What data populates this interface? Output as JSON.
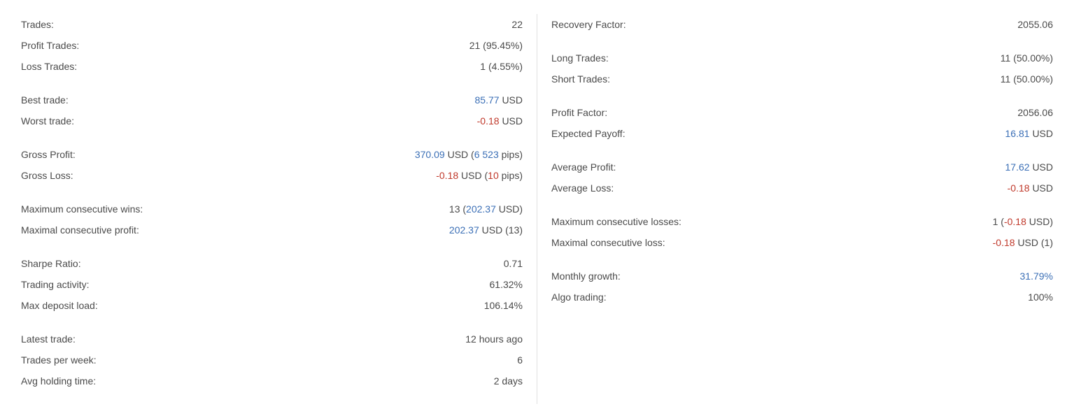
{
  "left": {
    "group1": [
      {
        "label": "Trades:",
        "value": {
          "html": "<span class='grey'>22</span>"
        }
      },
      {
        "label": "Profit Trades:",
        "value": {
          "html": "<span class='grey'>21 (95.45%)</span>"
        }
      },
      {
        "label": "Loss Trades:",
        "value": {
          "html": "<span class='grey'>1 (4.55%)</span>"
        }
      }
    ],
    "group2": [
      {
        "label": "Best trade:",
        "value": {
          "html": "<span class='blue'>85.77</span> <span class='grey'>USD</span>"
        }
      },
      {
        "label": "Worst trade:",
        "value": {
          "html": "<span class='red'>-0.18</span> <span class='grey'>USD</span>"
        }
      }
    ],
    "group3": [
      {
        "label": "Gross Profit:",
        "value": {
          "html": "<span class='blue'>370.09</span> <span class='grey'>USD (</span><span class='blue'>6 523</span> <span class='grey'>pips)</span>"
        }
      },
      {
        "label": "Gross Loss:",
        "value": {
          "html": "<span class='red'>-0.18</span> <span class='grey'>USD (</span><span class='red'>10</span> <span class='grey'>pips)</span>"
        }
      }
    ],
    "group4": [
      {
        "label": "Maximum consecutive wins:",
        "value": {
          "html": "<span class='grey'>13 (</span><span class='blue'>202.37</span> <span class='grey'>USD)</span>"
        }
      },
      {
        "label": "Maximal consecutive profit:",
        "value": {
          "html": "<span class='blue'>202.37</span> <span class='grey'>USD (13)</span>"
        }
      }
    ],
    "group5": [
      {
        "label": "Sharpe Ratio:",
        "value": {
          "html": "<span class='grey'>0.71</span>"
        }
      },
      {
        "label": "Trading activity:",
        "value": {
          "html": "<span class='grey'>61.32%</span>"
        }
      },
      {
        "label": "Max deposit load:",
        "value": {
          "html": "<span class='grey'>106.14%</span>"
        }
      }
    ],
    "group6": [
      {
        "label": "Latest trade:",
        "value": {
          "html": "<span class='grey'>12 hours ago</span>"
        }
      },
      {
        "label": "Trades per week:",
        "value": {
          "html": "<span class='grey'>6</span>"
        }
      },
      {
        "label": "Avg holding time:",
        "value": {
          "html": "<span class='grey'>2 days</span>"
        }
      }
    ]
  },
  "right": {
    "group1": [
      {
        "label": "Recovery Factor:",
        "value": {
          "html": "<span class='grey'>2055.06</span>"
        }
      }
    ],
    "group2": [
      {
        "label": "Long Trades:",
        "value": {
          "html": "<span class='grey'>11 (50.00%)</span>"
        }
      },
      {
        "label": "Short Trades:",
        "value": {
          "html": "<span class='grey'>11 (50.00%)</span>"
        }
      }
    ],
    "group3": [
      {
        "label": "Profit Factor:",
        "value": {
          "html": "<span class='grey'>2056.06</span>"
        }
      },
      {
        "label": "Expected Payoff:",
        "value": {
          "html": "<span class='blue'>16.81</span> <span class='grey'>USD</span>"
        }
      }
    ],
    "group4": [
      {
        "label": "Average Profit:",
        "value": {
          "html": "<span class='blue'>17.62</span> <span class='grey'>USD</span>"
        }
      },
      {
        "label": "Average Loss:",
        "value": {
          "html": "<span class='red'>-0.18</span> <span class='grey'>USD</span>"
        }
      }
    ],
    "group5": [
      {
        "label": "Maximum consecutive losses:",
        "value": {
          "html": "<span class='grey'>1 (</span><span class='red'>-0.18</span> <span class='grey'>USD)</span>"
        }
      },
      {
        "label": "Maximal consecutive loss:",
        "value": {
          "html": "<span class='red'>-0.18</span> <span class='grey'>USD (1)</span>"
        }
      }
    ],
    "group6": [
      {
        "label": "Monthly growth:",
        "value": {
          "html": "<span class='blue'>31.79%</span>"
        }
      },
      {
        "label": "Algo trading:",
        "value": {
          "html": "<span class='grey'>100%</span>"
        }
      }
    ]
  }
}
